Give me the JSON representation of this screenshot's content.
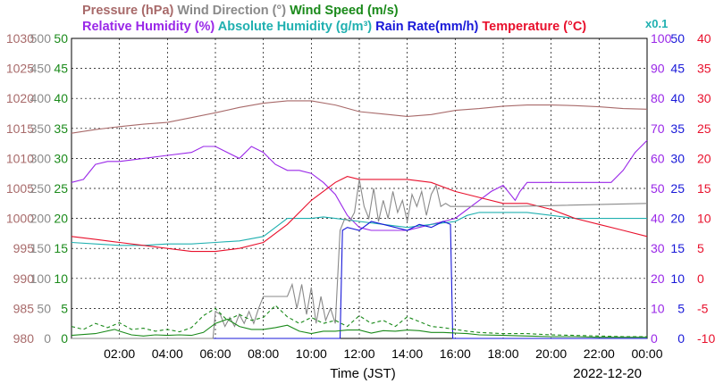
{
  "chart_data": {
    "type": "line",
    "date_label": "2022-12-20",
    "xlabel": "Time (JST)",
    "x_ticks": [
      "02:00",
      "04:00",
      "06:00",
      "08:00",
      "10:00",
      "12:00",
      "14:00",
      "16:00",
      "18:00",
      "20:00",
      "22:00",
      "00:00"
    ],
    "xlim": [
      0,
      24
    ],
    "legend_row1": [
      {
        "name": "Pressure (hPa)",
        "color": "#a86a6a"
      },
      {
        "name": "Wind Direction (°)",
        "color": "#8a8a8a"
      },
      {
        "name": "Wind Speed (m/s)",
        "color": "#1a8a1a"
      }
    ],
    "legend_row2": [
      {
        "name": "Relative Humidity (%)",
        "color": "#9a28e8"
      },
      {
        "name": "Absolute Humidity (g/m³)",
        "color": "#20b0b0"
      },
      {
        "name": "Rain Rate(mm/h)",
        "color": "#1818d8"
      },
      {
        "name": "Temperature (°C)",
        "color": "#e8102c"
      }
    ],
    "multiplier_note": "x0.1",
    "multiplier_color": "#20b0b0",
    "axes": {
      "pressure": {
        "min": 980,
        "max": 1030,
        "step": 5,
        "color": "#a86a6a",
        "labels": [
          "980",
          "985",
          "990",
          "995",
          "1000",
          "1005",
          "1010",
          "1015",
          "1020",
          "1025",
          "1030"
        ]
      },
      "wind_direction": {
        "min": 0,
        "max": 500,
        "step": 50,
        "color": "#8a8a8a",
        "labels": [
          "0",
          "50",
          "100",
          "150",
          "200",
          "250",
          "300",
          "350",
          "400",
          "450",
          "500"
        ]
      },
      "wind_speed": {
        "min": 0,
        "max": 50,
        "step": 5,
        "color": "#1a8a1a",
        "labels": [
          "0",
          "5",
          "10",
          "15",
          "20",
          "25",
          "30",
          "35",
          "40",
          "45",
          "50"
        ]
      },
      "humidity": {
        "min": 0,
        "max": 100,
        "step": 10,
        "color": "#9a28e8",
        "labels": [
          "0",
          "10",
          "20",
          "30",
          "40",
          "50",
          "60",
          "70",
          "80",
          "90",
          "100"
        ]
      },
      "rain_rate": {
        "min": 0,
        "max": 50,
        "step": 5,
        "color": "#1818d8",
        "labels": [
          "0",
          "5",
          "10",
          "15",
          "20",
          "25",
          "30",
          "35",
          "40",
          "45",
          "50"
        ]
      },
      "temperature": {
        "min": -10,
        "max": 40,
        "step": 5,
        "color": "#e8102c",
        "labels": [
          "-10",
          "-5",
          "0",
          "5",
          "10",
          "15",
          "20",
          "25",
          "30",
          "35",
          "40"
        ]
      }
    },
    "series": [
      {
        "name": "Pressure (hPa)",
        "axis": "pressure",
        "color": "#a86a6a",
        "x": [
          0,
          1,
          2,
          3,
          4,
          5,
          6,
          7,
          8,
          9,
          10,
          11,
          12,
          13,
          14,
          15,
          16,
          17,
          18,
          19,
          20,
          21,
          22,
          23,
          24
        ],
        "y": [
          1014.2,
          1014.8,
          1015.3,
          1015.7,
          1016.0,
          1016.8,
          1017.6,
          1018.5,
          1019.2,
          1019.6,
          1019.6,
          1018.9,
          1017.8,
          1017.4,
          1017.0,
          1017.3,
          1018.0,
          1018.3,
          1018.7,
          1018.9,
          1018.9,
          1018.8,
          1018.6,
          1018.3,
          1018.2
        ]
      },
      {
        "name": "Relative Humidity (%)",
        "axis": "humidity",
        "color": "#9a28e8",
        "x": [
          0,
          0.5,
          1,
          1.5,
          2,
          3,
          4,
          5,
          5.5,
          6,
          6.5,
          7,
          7.5,
          8,
          8.5,
          9,
          9.5,
          10,
          10.5,
          11,
          11.5,
          12,
          12.5,
          13,
          13.5,
          14,
          14.5,
          15,
          15.5,
          16,
          16.5,
          17,
          17.5,
          18,
          18.3,
          18.5,
          18.7,
          19,
          20,
          21,
          22,
          22.5,
          23,
          23.5,
          24
        ],
        "y": [
          52,
          53,
          58,
          59,
          59,
          60,
          61,
          62,
          64,
          64,
          62,
          60,
          64,
          62,
          58,
          56,
          56,
          55,
          52,
          48,
          41,
          37,
          36,
          36,
          36,
          36,
          37,
          38,
          39,
          40,
          43,
          46,
          49,
          51,
          48,
          46,
          49,
          52,
          52,
          52,
          52,
          52,
          56,
          62,
          66
        ]
      },
      {
        "name": "Absolute Humidity (g/m³)",
        "axis": "humidity",
        "color": "#20b0b0",
        "x": [
          0,
          1,
          2,
          3,
          4,
          5,
          6,
          7,
          8,
          8.5,
          9,
          10,
          10.5,
          11,
          12,
          13,
          14,
          15,
          16,
          16.5,
          17,
          18,
          19,
          20,
          21,
          22,
          23,
          24
        ],
        "y": [
          32,
          31.5,
          31,
          31,
          31.5,
          31.5,
          32,
          32.5,
          34,
          37,
          40,
          40,
          40.5,
          40,
          39,
          38,
          37,
          38,
          39,
          41,
          42,
          42,
          42,
          41,
          40,
          40,
          40,
          40
        ]
      },
      {
        "name": "Rain Rate(mm/h)",
        "axis": "rain_rate",
        "color": "#1818d8",
        "x": [
          0,
          11.2,
          11.3,
          11.5,
          12,
          12.5,
          13,
          13.5,
          14,
          14.5,
          15,
          15.5,
          15.8,
          15.9,
          24
        ],
        "y": [
          0,
          0,
          18,
          18.5,
          18,
          19.5,
          19,
          18.5,
          18,
          19,
          18.5,
          19.5,
          19,
          0,
          0
        ]
      },
      {
        "name": "Temperature (°C)",
        "axis": "temperature",
        "color": "#e8102c",
        "x": [
          0,
          1,
          2,
          3,
          4,
          5,
          6,
          7,
          8,
          9,
          10,
          11,
          11.5,
          12,
          13,
          14,
          15,
          16,
          17,
          18,
          19,
          20,
          21,
          22,
          23,
          24
        ],
        "y": [
          7,
          6.5,
          6,
          5.5,
          5,
          4.5,
          4.5,
          5,
          6,
          9,
          13,
          16,
          17,
          16.5,
          16.5,
          16.5,
          16,
          14.5,
          13.5,
          12.5,
          12.5,
          11.5,
          10,
          9,
          8,
          7
        ]
      },
      {
        "name": "Wind Direction (°)",
        "axis": "wind_direction",
        "color": "#8a8a8a",
        "x": [
          0,
          5.9,
          6.0,
          6.2,
          6.4,
          6.6,
          6.8,
          7.0,
          7.2,
          7.4,
          7.6,
          7.8,
          8.0,
          8.5,
          9.0,
          9.2,
          9.4,
          9.6,
          9.8,
          10.0,
          10.2,
          10.4,
          10.6,
          10.8,
          11.0,
          11.2,
          11.4,
          11.6,
          11.8,
          12.0,
          12.2,
          12.4,
          12.6,
          12.8,
          13.0,
          13.2,
          13.4,
          13.6,
          13.8,
          14.0,
          14.2,
          14.4,
          14.6,
          14.8,
          15.0,
          15.2,
          15.4,
          15.6,
          15.8,
          16.0,
          18.5,
          24
        ],
        "y": [
          0,
          0,
          45,
          40,
          20,
          35,
          20,
          40,
          25,
          45,
          25,
          50,
          70,
          70,
          70,
          90,
          50,
          90,
          40,
          85,
          25,
          70,
          30,
          50,
          25,
          180,
          200,
          195,
          210,
          265,
          220,
          200,
          250,
          195,
          230,
          200,
          245,
          210,
          230,
          195,
          240,
          220,
          245,
          205,
          240,
          255,
          220,
          225,
          220,
          220,
          220,
          225
        ]
      },
      {
        "name": "Wind Speed (m/s)",
        "axis": "wind_speed",
        "color": "#1a8a1a",
        "x": [
          0,
          1,
          1.8,
          2,
          2.5,
          3,
          3.5,
          4,
          4.5,
          5,
          5.5,
          6,
          6.5,
          7,
          7.5,
          8,
          8.5,
          9,
          9.5,
          10,
          10.5,
          11,
          11.5,
          12,
          12.5,
          13,
          13.5,
          14,
          14.5,
          15,
          15.5,
          16,
          16.5,
          17,
          18,
          19,
          20,
          21,
          22,
          23,
          24
        ],
        "y": [
          0.5,
          0.8,
          1.5,
          1.2,
          0.6,
          0.4,
          0.6,
          0.5,
          0.6,
          0.5,
          1.0,
          2.5,
          3.2,
          2.0,
          1.5,
          1.5,
          1.8,
          2.2,
          1.2,
          0.8,
          1.2,
          1.2,
          1.4,
          1.4,
          0.9,
          1.3,
          1.2,
          1.4,
          1.3,
          1.0,
          1.0,
          0.9,
          0.8,
          0.6,
          0.5,
          0.4,
          0.3,
          0.3,
          0.2,
          0.2,
          0.2
        ]
      },
      {
        "name": "Wind Speed (m/s)",
        "axis": "wind_speed",
        "color": "#1a8a1a",
        "dash": true,
        "x": [
          0,
          0.5,
          1,
          1.5,
          2,
          2.5,
          3,
          3.5,
          4,
          4.5,
          5,
          5.5,
          6,
          6.5,
          7,
          7.5,
          8,
          8.5,
          9,
          9.5,
          10,
          10.5,
          11,
          11.5,
          12,
          12.5,
          13,
          13.5,
          14,
          14.5,
          15,
          15.5,
          16,
          16.5,
          17,
          18,
          19,
          20,
          21,
          22,
          23,
          24
        ],
        "y": [
          2.0,
          1.5,
          2.5,
          1.8,
          2.6,
          1.5,
          1.7,
          1.2,
          1.5,
          1.1,
          1.8,
          3.8,
          5.0,
          3.0,
          4.0,
          3.0,
          3.5,
          5.5,
          3.6,
          2.5,
          3.5,
          2.5,
          3.0,
          2.0,
          3.8,
          2.5,
          3.0,
          2.0,
          3.6,
          2.8,
          2.0,
          1.8,
          1.5,
          1.2,
          1.0,
          0.8,
          0.8,
          0.6,
          0.5,
          0.4,
          0.3,
          0.3
        ]
      }
    ]
  }
}
